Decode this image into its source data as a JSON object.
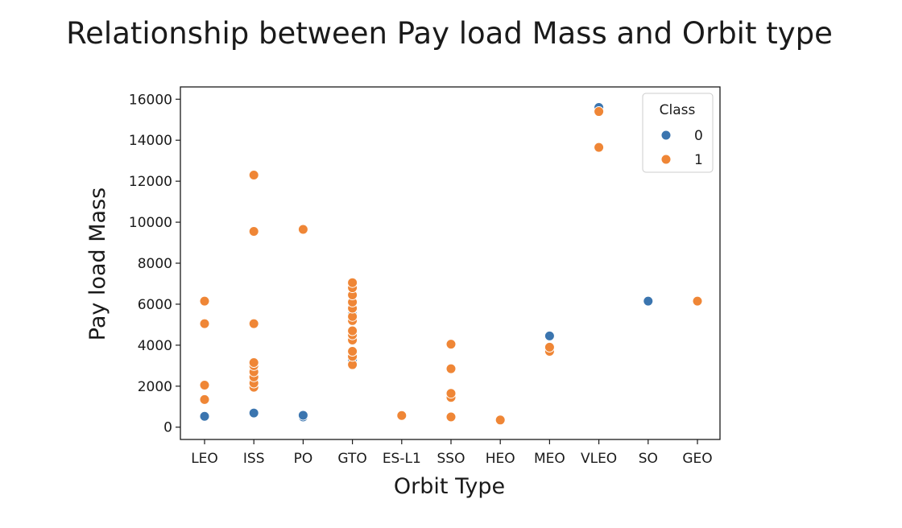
{
  "chart_data": {
    "type": "scatter",
    "title": "Relationship between Pay load Mass and Orbit type",
    "xlabel": "Orbit Type",
    "ylabel": "Pay load Mass",
    "categories": [
      "LEO",
      "ISS",
      "PO",
      "GTO",
      "ES-L1",
      "SSO",
      "HEO",
      "MEO",
      "VLEO",
      "SO",
      "GEO"
    ],
    "ylim": [
      -600,
      16600
    ],
    "yticks": [
      0,
      2000,
      4000,
      6000,
      8000,
      10000,
      12000,
      14000,
      16000
    ],
    "legend": {
      "title": "Class",
      "position": "top-right"
    },
    "series": [
      {
        "name": "0",
        "color": "#3b75af",
        "points": [
          {
            "x": "LEO",
            "y": 530
          },
          {
            "x": "ISS",
            "y": 690
          },
          {
            "x": "ISS",
            "y": 2000
          },
          {
            "x": "ISS",
            "y": 2300
          },
          {
            "x": "ISS",
            "y": 2600
          },
          {
            "x": "ISS",
            "y": 2900
          },
          {
            "x": "PO",
            "y": 500
          },
          {
            "x": "PO",
            "y": 580
          },
          {
            "x": "GTO",
            "y": 3300
          },
          {
            "x": "GTO",
            "y": 5300
          },
          {
            "x": "GTO",
            "y": 5500
          },
          {
            "x": "GTO",
            "y": 6000
          },
          {
            "x": "GTO",
            "y": 6500
          },
          {
            "x": "MEO",
            "y": 4450
          },
          {
            "x": "VLEO",
            "y": 15600
          },
          {
            "x": "SO",
            "y": 6150
          }
        ]
      },
      {
        "name": "1",
        "color": "#ef8636",
        "points": [
          {
            "x": "LEO",
            "y": 1350
          },
          {
            "x": "LEO",
            "y": 2050
          },
          {
            "x": "LEO",
            "y": 5050
          },
          {
            "x": "LEO",
            "y": 6150
          },
          {
            "x": "ISS",
            "y": 1950
          },
          {
            "x": "ISS",
            "y": 2150
          },
          {
            "x": "ISS",
            "y": 2450
          },
          {
            "x": "ISS",
            "y": 2700
          },
          {
            "x": "ISS",
            "y": 3000
          },
          {
            "x": "ISS",
            "y": 3150
          },
          {
            "x": "ISS",
            "y": 5050
          },
          {
            "x": "ISS",
            "y": 9550
          },
          {
            "x": "ISS",
            "y": 12300
          },
          {
            "x": "PO",
            "y": 9650
          },
          {
            "x": "GTO",
            "y": 3050
          },
          {
            "x": "GTO",
            "y": 3450
          },
          {
            "x": "GTO",
            "y": 3700
          },
          {
            "x": "GTO",
            "y": 4250
          },
          {
            "x": "GTO",
            "y": 4500
          },
          {
            "x": "GTO",
            "y": 4700
          },
          {
            "x": "GTO",
            "y": 5200
          },
          {
            "x": "GTO",
            "y": 5400
          },
          {
            "x": "GTO",
            "y": 5800
          },
          {
            "x": "GTO",
            "y": 6100
          },
          {
            "x": "GTO",
            "y": 6450
          },
          {
            "x": "GTO",
            "y": 6800
          },
          {
            "x": "GTO",
            "y": 7050
          },
          {
            "x": "ES-L1",
            "y": 570
          },
          {
            "x": "SSO",
            "y": 500
          },
          {
            "x": "SSO",
            "y": 1450
          },
          {
            "x": "SSO",
            "y": 1650
          },
          {
            "x": "SSO",
            "y": 2850
          },
          {
            "x": "SSO",
            "y": 4050
          },
          {
            "x": "HEO",
            "y": 350
          },
          {
            "x": "MEO",
            "y": 3700
          },
          {
            "x": "MEO",
            "y": 3900
          },
          {
            "x": "VLEO",
            "y": 13650
          },
          {
            "x": "VLEO",
            "y": 15400
          },
          {
            "x": "GEO",
            "y": 6150
          }
        ]
      }
    ]
  }
}
